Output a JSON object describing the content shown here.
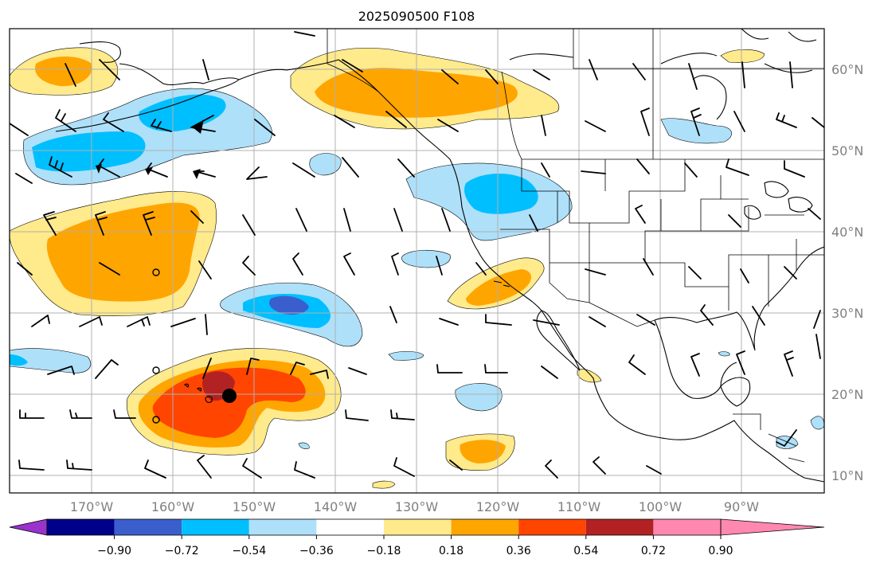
{
  "title": "2025090500 F108",
  "map": {
    "lon_labels": [
      "170°W",
      "160°W",
      "150°W",
      "140°W",
      "130°W",
      "120°W",
      "110°W",
      "100°W",
      "90°W"
    ],
    "lat_labels": [
      "60°N",
      "50°N",
      "40°N",
      "30°N",
      "20°N",
      "10°N"
    ]
  },
  "colorbar": {
    "ticks": [
      "−0.90",
      "−0.72",
      "−0.54",
      "−0.36",
      "−0.18",
      "0.18",
      "0.36",
      "0.54",
      "0.72",
      "0.90"
    ],
    "colors": [
      "#9933cc",
      "#00008b",
      "#3a5fcd",
      "#00bfff",
      "#aee0fa",
      "#ffffff",
      "#ffea8c",
      "#ffa500",
      "#ff4500",
      "#b22222",
      "#ff88b0"
    ]
  },
  "colors": {
    "yellow": "#ffea8c",
    "orange": "#ffa500",
    "red_orange": "#ff4500",
    "dark_red": "#b22222",
    "light_blue": "#aee0fa",
    "sky_blue": "#00bfff",
    "royal_blue": "#3a5fcd"
  }
}
